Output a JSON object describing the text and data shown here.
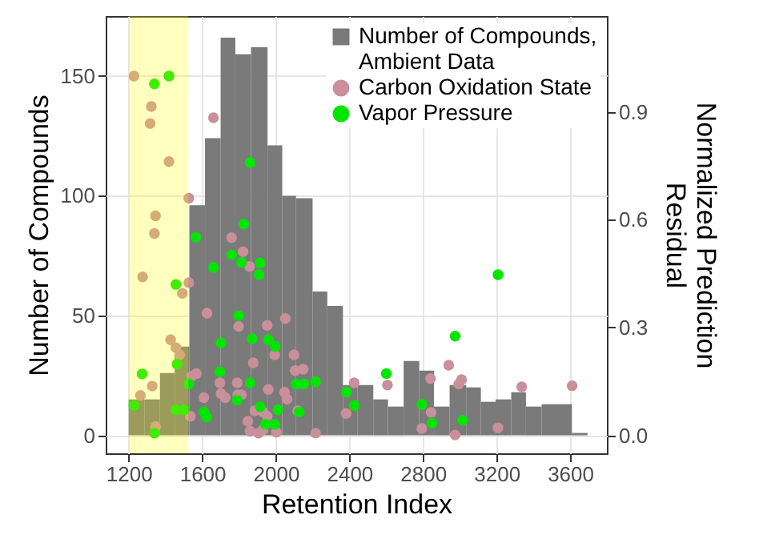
{
  "chart_data": {
    "type": "histogram",
    "xlabel": "Retention Index",
    "ylabel": "Number of Compounds",
    "y2label": "Normalized Prediction Residual",
    "xlim": [
      1075,
      3800
    ],
    "xticks": [
      {
        "value": 1200,
        "label": "1200"
      },
      {
        "value": 1600,
        "label": "1600"
      },
      {
        "value": 2000,
        "label": "2000"
      },
      {
        "value": 2400,
        "label": "2400"
      },
      {
        "value": 2800,
        "label": "2800"
      },
      {
        "value": 3200,
        "label": "3200"
      },
      {
        "value": 3600,
        "label": "3600"
      }
    ],
    "ylim": [
      -7.5,
      175
    ],
    "yticks": [
      0,
      50,
      100,
      150
    ],
    "y2lim": [
      -0.05,
      1.167
    ],
    "y2ticks": [
      {
        "value": 0,
        "label": "0.0"
      },
      {
        "value": 0.3,
        "label": "0.3"
      },
      {
        "value": 0.6,
        "label": "0.6"
      },
      {
        "value": 0.9,
        "label": "0.9"
      }
    ],
    "grid": true,
    "legend": "top right",
    "marker": "circle",
    "bands": [
      {
        "axis": "x",
        "from": 1200,
        "to": 1525,
        "color": "#ffff00"
      }
    ],
    "series": [
      {
        "name": "Number of Compounds, Ambient Data",
        "color": "#7a7a7a",
        "bins": [
          1200,
          1285,
          1370,
          1450,
          1530,
          1615,
          1700,
          1780,
          1865,
          1955,
          2035,
          2110,
          2200,
          2280,
          2365,
          2445,
          2530,
          2610,
          2695,
          2780,
          2860,
          2945,
          3035,
          3115,
          3195,
          3280,
          3360,
          3445,
          3530,
          3610,
          3695
        ],
        "values": [
          15,
          15,
          26,
          37,
          96,
          124,
          166,
          159,
          162,
          121,
          100,
          99,
          60,
          54,
          21,
          21,
          15,
          12,
          31,
          27,
          12,
          21,
          20,
          14,
          15,
          18,
          12,
          13,
          13,
          1
        ]
      },
      {
        "name": "Carbon Oxidation State",
        "type": "scatter",
        "axis": "y2",
        "color": "#c98f9b",
        "x": [
          1229,
          1323,
          1317,
          1419,
          1346,
          1340,
          1276,
          1527,
          1661,
          1492,
          1527,
          1428,
          1457,
          1477,
          1328,
          1264,
          1346,
          1568,
          1696,
          1702,
          1725,
          1626,
          1760,
          1822,
          1857,
          1790,
          1793,
          1798,
          1813,
          1877,
          1953,
          1959,
          1994,
          2052,
          2047,
          2099,
          2105,
          2149,
          1886,
          1930,
          1953,
          1860,
          1906,
          1930,
          2003,
          2119,
          2216,
          2426,
          2382,
          1536,
          1609,
          1544,
          1848,
          2061,
          2607,
          2841,
          2940,
          3010,
          2995,
          2844,
          2794,
          2975,
          3208,
          3337,
          3611
        ],
        "values": [
          1.0,
          0.915,
          0.868,
          0.762,
          0.611,
          0.562,
          0.441,
          0.66,
          0.884,
          0.395,
          0.425,
          0.266,
          0.244,
          0.224,
          0.137,
          0.111,
          0.024,
          0.172,
          0.146,
          0.116,
          0.105,
          0.34,
          0.55,
          0.511,
          0.47,
          0.146,
          0.113,
          0.303,
          0.113,
          0.202,
          0.306,
          0.128,
          0.224,
          0.325,
          0.12,
          0.224,
          0.18,
          0.184,
          0.068,
          0.065,
          0.053,
          0.012,
          0.006,
          0.015,
          0.009,
          0.068,
          0.006,
          0.146,
          0.061,
          0.053,
          0.105,
          0.165,
          0.039,
          0.101,
          0.14,
          0.158,
          0.195,
          0.155,
          0.143,
          0.064,
          0.019,
          0.001,
          0.021,
          0.135,
          0.138
        ]
      },
      {
        "name": "Vapor Pressure",
        "type": "scatter",
        "axis": "y2",
        "color": "#00e600",
        "x": [
          1340,
          1419,
          1860,
          1825,
          1565,
          1760,
          1813,
          1915,
          1909,
          1661,
          1457,
          1273,
          1463,
          1527,
          1457,
          1501,
          1229,
          1340,
          1871,
          1959,
          1798,
          1702,
          1997,
          1696,
          1790,
          1860,
          1915,
          2012,
          2111,
          2152,
          2216,
          2128,
          1994,
          1944,
          1609,
          1623,
          2601,
          2385,
          2426,
          2794,
          2849,
          2975,
          3016,
          3208
        ],
        "values": [
          0.978,
          1.0,
          0.759,
          0.588,
          0.551,
          0.502,
          0.481,
          0.48,
          0.447,
          0.467,
          0.42,
          0.171,
          0.198,
          0.143,
          0.071,
          0.071,
          0.083,
          0.006,
          0.269,
          0.266,
          0.333,
          0.257,
          0.247,
          0.177,
          0.098,
          0.146,
          0.08,
          0.071,
          0.143,
          0.143,
          0.149,
          0.065,
          0.031,
          0.031,
          0.065,
          0.051,
          0.172,
          0.12,
          0.083,
          0.086,
          0.034,
          0.276,
          0.042,
          0.447
        ]
      }
    ]
  }
}
